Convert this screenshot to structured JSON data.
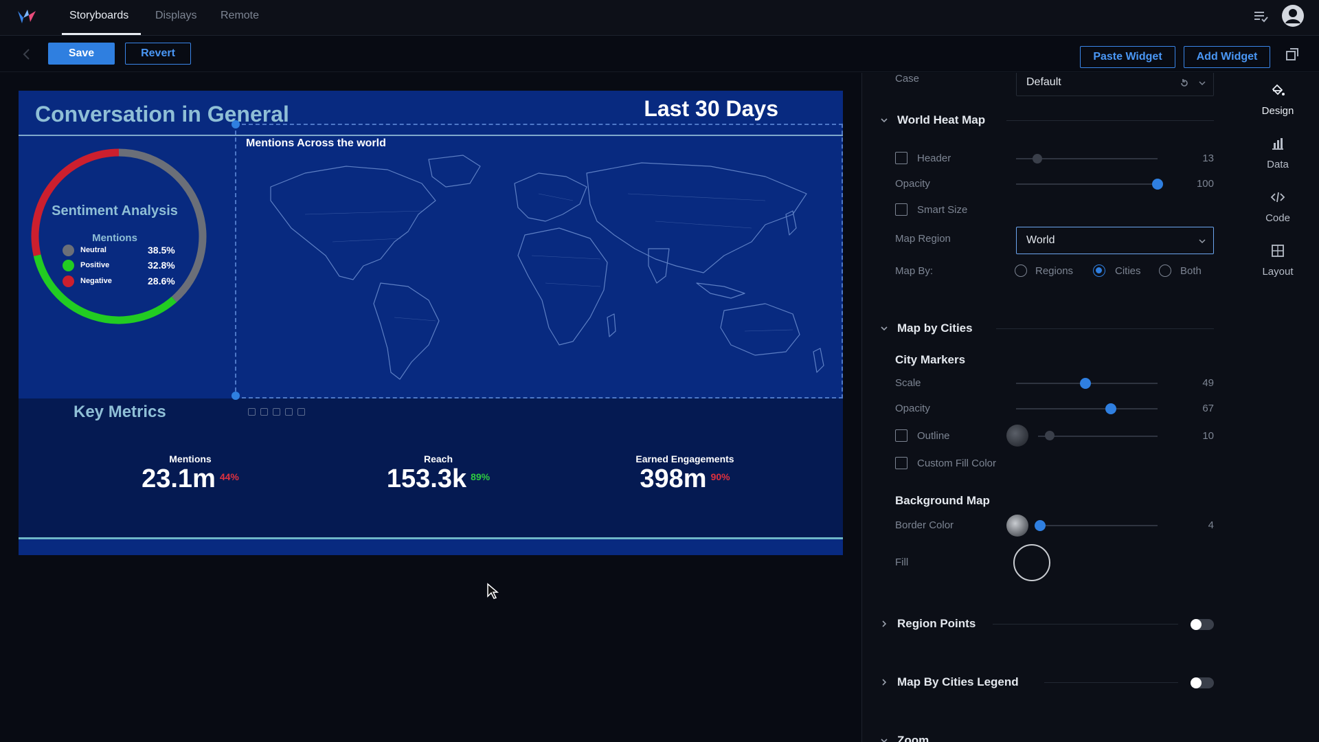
{
  "nav": {
    "tabs": [
      {
        "label": "Storyboards",
        "active": true
      },
      {
        "label": "Displays",
        "active": false
      },
      {
        "label": "Remote",
        "active": false
      }
    ]
  },
  "toolbar": {
    "save_label": "Save",
    "revert_label": "Revert",
    "paste_widget_label": "Paste Widget",
    "add_widget_label": "Add Widget"
  },
  "dashboard": {
    "title": "Conversation in General",
    "period": "Last 30 Days",
    "sentiment": {
      "title": "Sentiment Analysis",
      "subtitle": "Mentions",
      "items": [
        {
          "label": "Neutral",
          "value": "38.5%",
          "percent": 38.5,
          "color": "#6b6f78"
        },
        {
          "label": "Positive",
          "value": "32.8%",
          "percent": 32.8,
          "color": "#22cc22"
        },
        {
          "label": "Negative",
          "value": "28.6%",
          "percent": 28.6,
          "color": "#cc1f2e"
        }
      ]
    },
    "map_title": "Mentions Across the world",
    "key_metrics_title": "Key Metrics",
    "metrics": [
      {
        "label": "Mentions",
        "value": "23.1m",
        "change": "44%",
        "change_color": "#e0313f"
      },
      {
        "label": "Reach",
        "value": "153.3k",
        "change": "89%",
        "change_color": "#2ecc40"
      },
      {
        "label": "Earned Engagements",
        "value": "398m",
        "change": "90%",
        "change_color": "#e0313f"
      }
    ]
  },
  "panel": {
    "case_label": "Case",
    "case_value": "Default",
    "world_heat_map": {
      "title": "World Heat Map",
      "header_label": "Header",
      "header_value": "13",
      "header_level": 0.15,
      "opacity_label": "Opacity",
      "opacity_value": "100",
      "opacity_level": 1.0,
      "smart_size_label": "Smart Size",
      "map_region_label": "Map Region",
      "map_region_value": "World",
      "map_by_label": "Map By:",
      "map_by_options": [
        {
          "label": "Regions",
          "selected": false
        },
        {
          "label": "Cities",
          "selected": true
        },
        {
          "label": "Both",
          "selected": false
        }
      ]
    },
    "map_by_cities": {
      "title": "Map by Cities",
      "city_markers_label": "City Markers",
      "scale_label": "Scale",
      "scale_value": "49",
      "scale_level": 0.49,
      "opacity_label": "Opacity",
      "opacity_value": "67",
      "opacity_level": 0.67,
      "outline_label": "Outline",
      "outline_value": "10",
      "outline_level": 0.1,
      "custom_fill_label": "Custom Fill Color",
      "background_map_label": "Background Map",
      "border_color_label": "Border Color",
      "border_value": "4",
      "border_level": 0.02,
      "fill_label": "Fill"
    },
    "region_points_label": "Region Points",
    "legend_label": "Map By Cities Legend",
    "zoom_label": "Zoom"
  },
  "sidetabs": [
    {
      "label": "Design",
      "icon": "paint-bucket-icon",
      "active": true
    },
    {
      "label": "Data",
      "icon": "bar-chart-icon",
      "active": false
    },
    {
      "label": "Code",
      "icon": "code-icon",
      "active": false
    },
    {
      "label": "Layout",
      "icon": "layout-grid-icon",
      "active": false
    }
  ]
}
